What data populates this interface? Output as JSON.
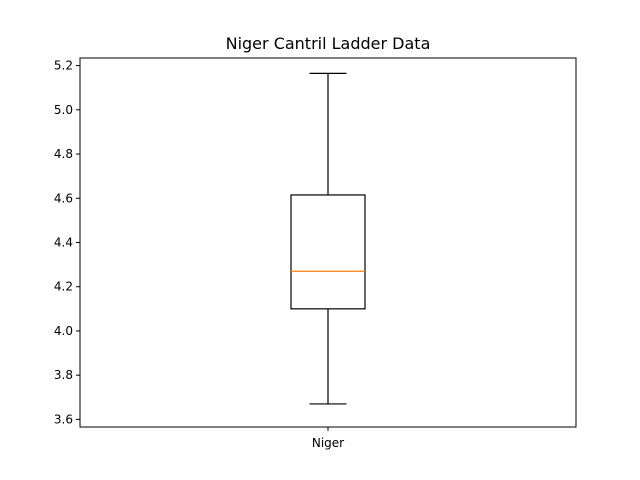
{
  "chart_data": {
    "type": "box",
    "title": "Niger Cantril Ladder Data",
    "xlabel": "",
    "ylabel": "",
    "ylim": [
      3.6,
      5.2
    ],
    "yticks": [
      "3.6",
      "3.8",
      "4.0",
      "4.2",
      "4.4",
      "4.6",
      "4.8",
      "5.0",
      "5.2"
    ],
    "categories": [
      "Niger"
    ],
    "boxes": [
      {
        "label": "Niger",
        "whisker_low": 3.67,
        "q1": 4.1,
        "median": 4.27,
        "q3": 4.615,
        "whisker_high": 5.165
      }
    ],
    "grid": false,
    "colors": {
      "box": "#000000",
      "median": "#ff7f0e",
      "background": "#ffffff"
    }
  }
}
